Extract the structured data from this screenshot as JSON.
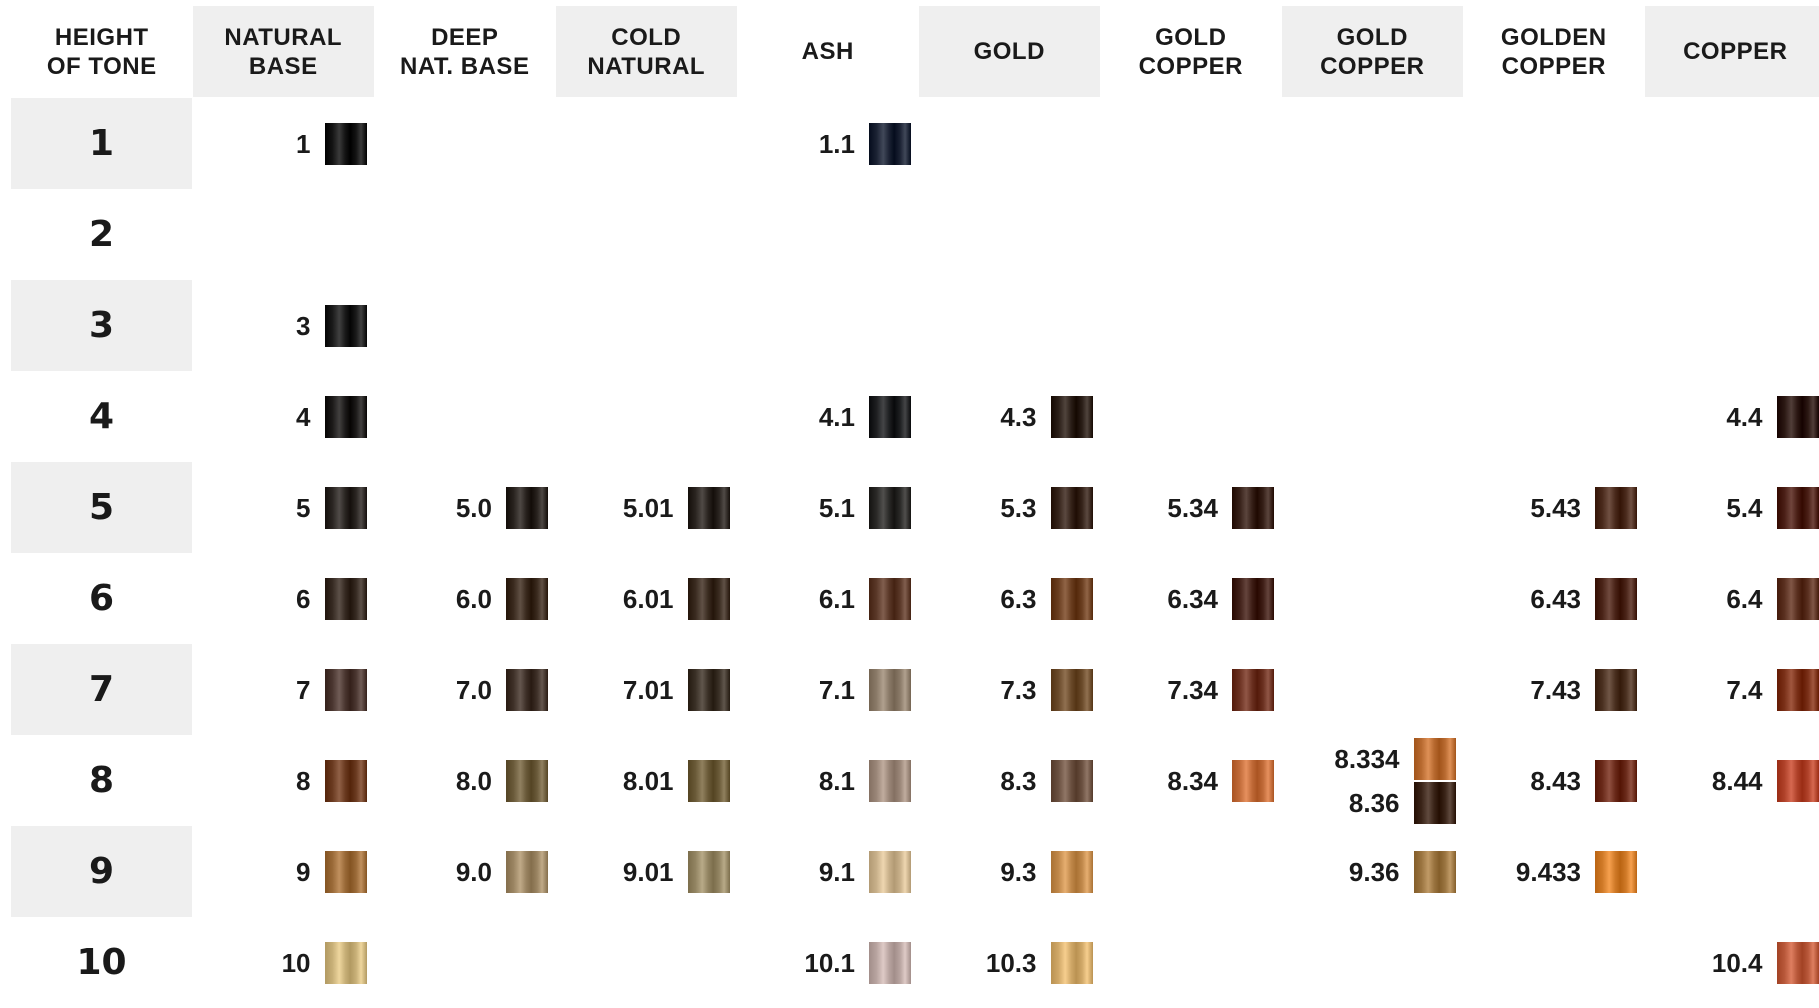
{
  "columns": [
    {
      "id": "height",
      "label": "HEIGHT\nOF TONE",
      "shaded": false
    },
    {
      "id": "natural-base",
      "label": "NATURAL\nBASE",
      "shaded": true
    },
    {
      "id": "deep-nat-base",
      "label": "DEEP\nNAT. BASE",
      "shaded": false
    },
    {
      "id": "cold-natural",
      "label": "COLD\nNATURAL",
      "shaded": true
    },
    {
      "id": "ash",
      "label": "ASH",
      "shaded": false
    },
    {
      "id": "gold",
      "label": "GOLD",
      "shaded": true
    },
    {
      "id": "gold-copper-1",
      "label": "GOLD\nCOPPER",
      "shaded": false
    },
    {
      "id": "gold-copper-2",
      "label": "GOLD\nCOPPER",
      "shaded": true
    },
    {
      "id": "golden-copper",
      "label": "GOLDEN\nCOPPER",
      "shaded": false
    },
    {
      "id": "copper",
      "label": "COPPER",
      "shaded": true
    }
  ],
  "rows": [
    "1",
    "2",
    "3",
    "4",
    "5",
    "6",
    "7",
    "8",
    "9",
    "10"
  ],
  "shades": [
    {
      "code": "1",
      "row": 0,
      "col": 1,
      "color": "#141414"
    },
    {
      "code": "1.1",
      "row": 0,
      "col": 4,
      "color": "#1b2233"
    },
    {
      "code": "3",
      "row": 2,
      "col": 1,
      "color": "#1a1a1a"
    },
    {
      "code": "4",
      "row": 3,
      "col": 1,
      "color": "#1c1a19"
    },
    {
      "code": "4.1",
      "row": 3,
      "col": 4,
      "color": "#1e1f21"
    },
    {
      "code": "4.3",
      "row": 3,
      "col": 5,
      "color": "#2a1e17"
    },
    {
      "code": "4.4",
      "row": 3,
      "col": 9,
      "color": "#2b1813"
    },
    {
      "code": "5",
      "row": 4,
      "col": 1,
      "color": "#2a2522"
    },
    {
      "code": "5.0",
      "row": 4,
      "col": 2,
      "color": "#28221e"
    },
    {
      "code": "5.01",
      "row": 4,
      "col": 3,
      "color": "#2a2420"
    },
    {
      "code": "5.1",
      "row": 4,
      "col": 4,
      "color": "#2a2927"
    },
    {
      "code": "5.3",
      "row": 4,
      "col": 5,
      "color": "#35231a"
    },
    {
      "code": "5.34",
      "row": 4,
      "col": 6,
      "color": "#351f17"
    },
    {
      "code": "5.43",
      "row": 4,
      "col": 8,
      "color": "#4a2a1c"
    },
    {
      "code": "5.4",
      "row": 4,
      "col": 9,
      "color": "#4a1f16"
    },
    {
      "code": "6",
      "row": 5,
      "col": 1,
      "color": "#362a22"
    },
    {
      "code": "6.0",
      "row": 5,
      "col": 2,
      "color": "#3a2a1e"
    },
    {
      "code": "6.01",
      "row": 5,
      "col": 3,
      "color": "#3a2b20"
    },
    {
      "code": "6.1",
      "row": 5,
      "col": 4,
      "color": "#5a3828"
    },
    {
      "code": "6.3",
      "row": 5,
      "col": 5,
      "color": "#6a3e20"
    },
    {
      "code": "6.34",
      "row": 5,
      "col": 6,
      "color": "#3e1e16"
    },
    {
      "code": "6.43",
      "row": 5,
      "col": 8,
      "color": "#4a2418"
    },
    {
      "code": "6.4",
      "row": 5,
      "col": 9,
      "color": "#5a3020"
    },
    {
      "code": "7",
      "row": 6,
      "col": 1,
      "color": "#4a3630"
    },
    {
      "code": "7.0",
      "row": 6,
      "col": 2,
      "color": "#3e3028"
    },
    {
      "code": "7.01",
      "row": 6,
      "col": 3,
      "color": "#3a3026"
    },
    {
      "code": "7.1",
      "row": 6,
      "col": 4,
      "color": "#8a7a68"
    },
    {
      "code": "7.3",
      "row": 6,
      "col": 5,
      "color": "#6a4a2a"
    },
    {
      "code": "7.34",
      "row": 6,
      "col": 6,
      "color": "#6a3020"
    },
    {
      "code": "7.43",
      "row": 6,
      "col": 8,
      "color": "#4a3020"
    },
    {
      "code": "7.4",
      "row": 6,
      "col": 9,
      "color": "#7a3018"
    },
    {
      "code": "8",
      "row": 7,
      "col": 1,
      "color": "#6a3a20"
    },
    {
      "code": "8.0",
      "row": 7,
      "col": 2,
      "color": "#6a5a3a"
    },
    {
      "code": "8.01",
      "row": 7,
      "col": 3,
      "color": "#6a5a38"
    },
    {
      "code": "8.1",
      "row": 7,
      "col": 4,
      "color": "#9a8678"
    },
    {
      "code": "8.3",
      "row": 7,
      "col": 5,
      "color": "#6a5040"
    },
    {
      "code": "8.34",
      "row": 7,
      "col": 6,
      "color": "#c06a38"
    },
    {
      "code": "8.334",
      "row": 7,
      "col": 7,
      "sub": "top",
      "color": "#b86a30"
    },
    {
      "code": "8.36",
      "row": 7,
      "col": 7,
      "sub": "bottom",
      "color": "#3a2418"
    },
    {
      "code": "8.43",
      "row": 7,
      "col": 8,
      "color": "#6a2a1a"
    },
    {
      "code": "8.44",
      "row": 7,
      "col": 9,
      "color": "#b0422a"
    },
    {
      "code": "9",
      "row": 8,
      "col": 1,
      "color": "#9a6a38"
    },
    {
      "code": "9.0",
      "row": 8,
      "col": 2,
      "color": "#9a8462"
    },
    {
      "code": "9.01",
      "row": 8,
      "col": 3,
      "color": "#928462"
    },
    {
      "code": "9.1",
      "row": 8,
      "col": 4,
      "color": "#c8b08a"
    },
    {
      "code": "9.3",
      "row": 8,
      "col": 5,
      "color": "#c0884a"
    },
    {
      "code": "9.36",
      "row": 8,
      "col": 7,
      "color": "#9a7440"
    },
    {
      "code": "9.433",
      "row": 8,
      "col": 8,
      "color": "#d07a28"
    },
    {
      "code": "10",
      "row": 9,
      "col": 1,
      "color": "#c8b078"
    },
    {
      "code": "10.1",
      "row": 9,
      "col": 4,
      "color": "#b8a4a0"
    },
    {
      "code": "10.3",
      "row": 9,
      "col": 5,
      "color": "#d0a868"
    },
    {
      "code": "10.4",
      "row": 9,
      "col": 9,
      "color": "#b8583a"
    }
  ]
}
